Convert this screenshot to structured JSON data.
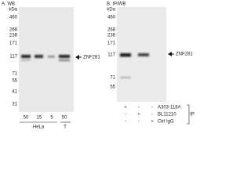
{
  "panel_a": {
    "title": "A. WB",
    "unit": "kDa",
    "markers": [
      "460",
      "268",
      "238",
      "171",
      "117",
      "71",
      "55",
      "41",
      "31"
    ],
    "target": "ZNF281",
    "lanes": [
      "50",
      "15",
      "5",
      "50"
    ],
    "groups": [
      "HeLa",
      "T"
    ]
  },
  "panel_b": {
    "title": "B. IP/WB",
    "unit": "kDa",
    "markers": [
      "460",
      "268",
      "238",
      "171",
      "117",
      "71",
      "55"
    ],
    "target": "ZNF281",
    "rows": [
      {
        "label": "A303-118A",
        "signs": [
          "+",
          "-",
          "-"
        ]
      },
      {
        "label": "BL11210",
        "signs": [
          "-",
          "+",
          "-"
        ]
      },
      {
        "label": "Ctrl IgG",
        "signs": [
          "-",
          "-",
          "+"
        ]
      }
    ],
    "group": "IP"
  }
}
